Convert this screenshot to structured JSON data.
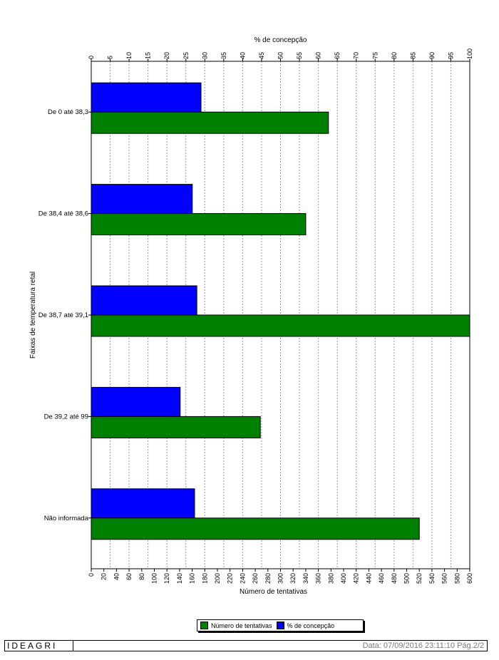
{
  "chart_data": {
    "type": "bar",
    "orientation": "horizontal",
    "ylabel": "Faixas de temperatura retal",
    "categories": [
      "De 0 até 38,3",
      "De 38,4 até 38,6",
      "De 38,7 até 39,1",
      "De 39,2 até 99",
      "Não informada"
    ],
    "series": [
      {
        "name": "% de concepção",
        "axis": "top",
        "color": "#0000ff",
        "values": [
          29,
          26.7,
          27.9,
          23.5,
          27.3
        ]
      },
      {
        "name": "Número de tentativas",
        "axis": "bottom",
        "color": "#008000",
        "values": [
          376,
          340,
          600,
          268,
          520
        ]
      }
    ],
    "x_top": {
      "label": "% de concepção",
      "min": 0,
      "max": 100,
      "step": 5
    },
    "x_bottom": {
      "label": "Número de tentativas",
      "min": 0,
      "max": 600,
      "step": 20
    },
    "grid": true,
    "legend": {
      "position": "bottom"
    }
  },
  "legend": {
    "items": [
      {
        "label": "Número de tentativas",
        "color": "#008000"
      },
      {
        "label": "% de concepção",
        "color": "#0000ff"
      }
    ]
  },
  "footer": {
    "brand": "IDEAGRI",
    "info": "Data: 07/09/2016 23:11:10 Pág.2/2"
  }
}
